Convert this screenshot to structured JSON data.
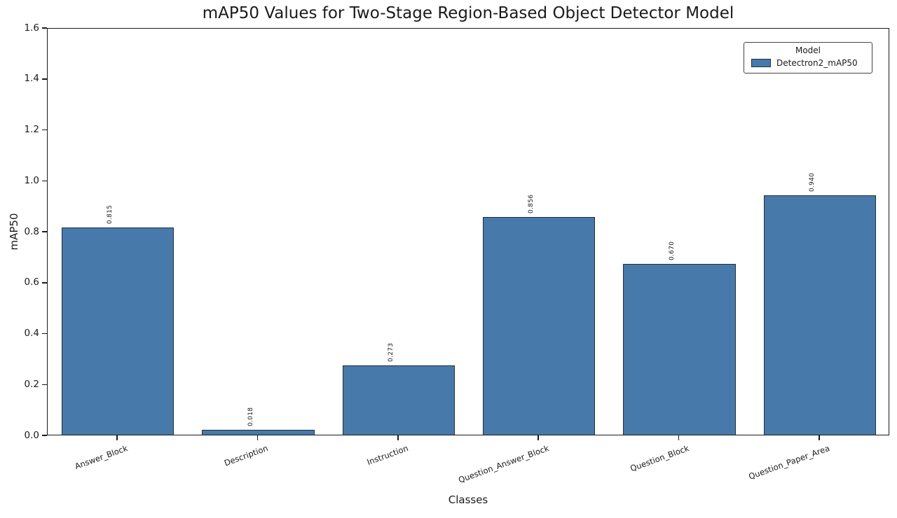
{
  "chart_data": {
    "type": "bar",
    "title": "mAP50 Values for Two-Stage Region-Based Object Detector Model",
    "xlabel": "Classes",
    "ylabel": "mAP50",
    "categories": [
      "Answer_Block",
      "Description",
      "Instruction",
      "Question_Answer_Block",
      "Question_Block",
      "Question_Paper_Area"
    ],
    "series": [
      {
        "name": "Detectron2_mAP50",
        "values": [
          0.815,
          0.018,
          0.273,
          0.856,
          0.67,
          0.94
        ]
      }
    ],
    "bar_value_labels": [
      "0.815",
      "0.018",
      "0.273",
      "0.856",
      "0.670",
      "0.940"
    ],
    "ylim": [
      0.0,
      1.6
    ],
    "yticks": [
      "0.0",
      "0.2",
      "0.4",
      "0.6",
      "0.8",
      "1.0",
      "1.2",
      "1.4",
      "1.6"
    ],
    "grid": false,
    "legend": {
      "title": "Model",
      "position": "upper-right",
      "entries": [
        {
          "label": "Detectron2_mAP50",
          "swatch_color": "#4779ab"
        }
      ]
    },
    "colors": {
      "bar_fill": "#4779ab",
      "bar_edge": "#22303c",
      "spine": "#1a1a1a",
      "text": "#1a1a1a"
    }
  }
}
